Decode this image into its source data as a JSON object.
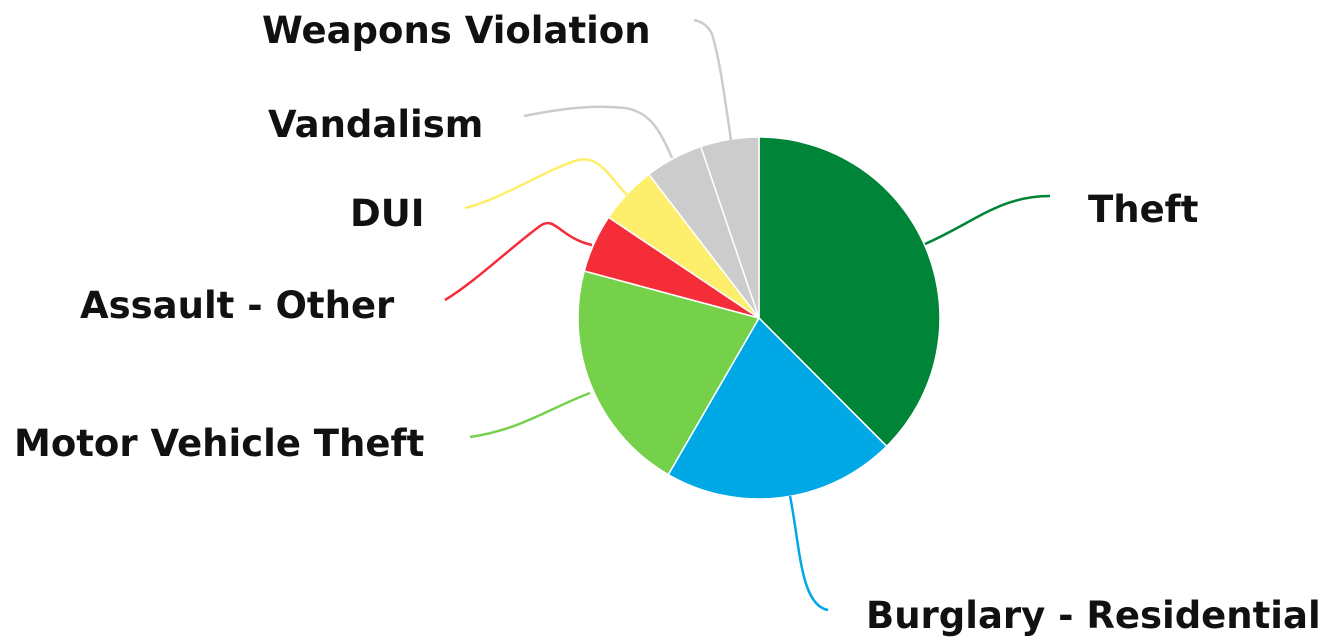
{
  "chart_data": {
    "type": "pie",
    "title": "",
    "legend": "none",
    "slices": [
      {
        "label": "Theft",
        "value": 37.5,
        "color": "#008437"
      },
      {
        "label": "Burglary - Residential",
        "value": 20.8,
        "color": "#00a8e6"
      },
      {
        "label": "Motor Vehicle Theft",
        "value": 20.8,
        "color": "#75d04a"
      },
      {
        "label": "Assault - Other",
        "value": 5.2,
        "color": "#f52d39"
      },
      {
        "label": "DUI",
        "value": 5.2,
        "color": "#fdee6b"
      },
      {
        "label": "Vandalism",
        "value": 5.2,
        "color": "#cccccc"
      },
      {
        "label": "Weapons Violation",
        "value": 5.2,
        "color": "#cccccc"
      }
    ]
  }
}
